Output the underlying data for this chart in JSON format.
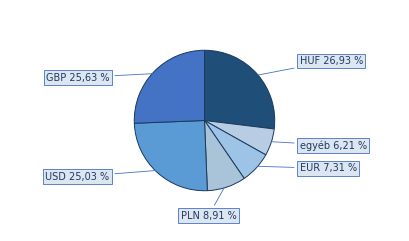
{
  "labels": [
    "HUF 26,93 %",
    "egyéb 6,21 %",
    "EUR 7,31 %",
    "PLN 8,91 %",
    "USD 25,03 %",
    "GBP 25,63 %"
  ],
  "values": [
    26.93,
    6.21,
    7.31,
    8.91,
    25.03,
    25.63
  ],
  "colors": [
    "#1f4e79",
    "#b8cce4",
    "#9dc3e6",
    "#a9c4d8",
    "#5b9bd5",
    "#4472c4"
  ],
  "startangle": 90,
  "background_color": "#ffffff",
  "edge_color": "#1a3a5c",
  "edge_width": 0.7,
  "label_box_color": "#dce6f1",
  "label_box_edge": "#4472c4",
  "label_fontsize": 7.0,
  "label_color": "#1f3864"
}
